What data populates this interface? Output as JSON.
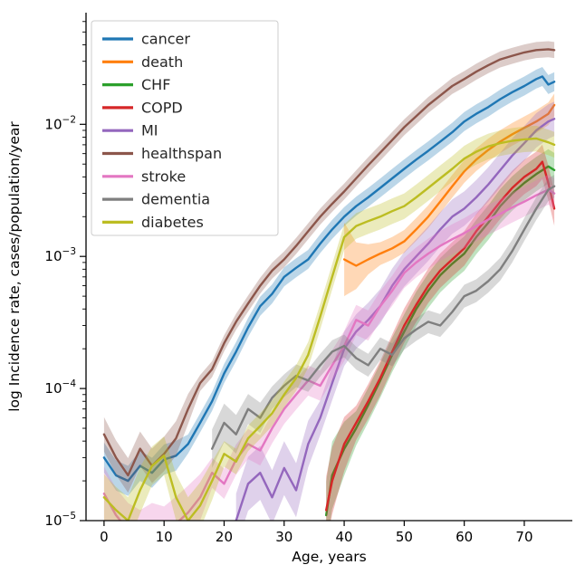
{
  "chart_data": {
    "type": "line",
    "title": "",
    "xlabel": "Age, years",
    "ylabel": "log Incidence rate, cases/population/year",
    "x_ticks": [
      0,
      10,
      20,
      30,
      40,
      50,
      60,
      70
    ],
    "xlim": [
      -3,
      78
    ],
    "ylog_lim": [
      1e-05,
      0.07
    ],
    "y_tick_exponents": [
      -2,
      -3,
      -4,
      -5
    ],
    "y_scale": "log",
    "grid": false,
    "legend_position": "upper left",
    "background": "#ffffff",
    "spine_color": "#000000",
    "series": [
      {
        "name": "cancer",
        "color": "#1f77b4",
        "band_factor": 1.18,
        "points": [
          [
            0,
            3e-05,
            1.3
          ],
          [
            2,
            2.2e-05,
            1.3
          ],
          [
            4,
            2e-05,
            1.3
          ],
          [
            6,
            2.6e-05,
            1.3
          ],
          [
            8,
            2.3e-05,
            1.3
          ],
          [
            10,
            2.9e-05,
            1.3
          ],
          [
            12,
            3.1e-05,
            1.3
          ],
          [
            14,
            3.8e-05
          ],
          [
            16,
            5.5e-05
          ],
          [
            18,
            8e-05
          ],
          [
            20,
            0.00013
          ],
          [
            22,
            0.00019
          ],
          [
            24,
            0.00029
          ],
          [
            26,
            0.00042
          ],
          [
            28,
            0.00052
          ],
          [
            30,
            0.0007
          ],
          [
            32,
            0.00082
          ],
          [
            34,
            0.00095
          ],
          [
            36,
            0.00125
          ],
          [
            38,
            0.0016
          ],
          [
            40,
            0.002
          ],
          [
            42,
            0.0024
          ],
          [
            44,
            0.0028
          ],
          [
            46,
            0.0033
          ],
          [
            48,
            0.0039
          ],
          [
            50,
            0.0046
          ],
          [
            52,
            0.0054
          ],
          [
            54,
            0.0063
          ],
          [
            56,
            0.0074
          ],
          [
            58,
            0.0087
          ],
          [
            60,
            0.0105
          ],
          [
            62,
            0.012
          ],
          [
            64,
            0.0135
          ],
          [
            66,
            0.0155
          ],
          [
            68,
            0.0175
          ],
          [
            70,
            0.0195
          ],
          [
            72,
            0.022
          ],
          [
            73,
            0.023
          ],
          [
            74,
            0.02
          ],
          [
            75,
            0.021
          ]
        ]
      },
      {
        "name": "death",
        "color": "#ff7f0e",
        "band_factor": 1.22,
        "points": [
          [
            40,
            0.00095,
            1.9
          ],
          [
            42,
            0.00085,
            1.5
          ],
          [
            44,
            0.00095,
            1.3
          ],
          [
            46,
            0.00105
          ],
          [
            48,
            0.00115
          ],
          [
            50,
            0.0013
          ],
          [
            52,
            0.0016
          ],
          [
            54,
            0.002
          ],
          [
            56,
            0.0026
          ],
          [
            58,
            0.0034
          ],
          [
            60,
            0.0044
          ],
          [
            62,
            0.0054
          ],
          [
            64,
            0.0064
          ],
          [
            66,
            0.0074
          ],
          [
            68,
            0.0084
          ],
          [
            70,
            0.0094
          ],
          [
            72,
            0.0105
          ],
          [
            74,
            0.012
          ],
          [
            75,
            0.014
          ]
        ]
      },
      {
        "name": "CHF",
        "color": "#2ca02c",
        "band_factor": 1.35,
        "points": [
          [
            37,
            1.1e-05,
            1.8
          ],
          [
            38,
            2.2e-05,
            1.8
          ],
          [
            40,
            3.5e-05,
            1.6
          ],
          [
            42,
            5e-05
          ],
          [
            44,
            7.5e-05
          ],
          [
            46,
            0.000115
          ],
          [
            48,
            0.00018
          ],
          [
            50,
            0.00027
          ],
          [
            52,
            0.0004
          ],
          [
            54,
            0.00055
          ],
          [
            56,
            0.00072
          ],
          [
            58,
            0.00088
          ],
          [
            60,
            0.00105
          ],
          [
            62,
            0.0014
          ],
          [
            64,
            0.0018
          ],
          [
            66,
            0.0024
          ],
          [
            68,
            0.003
          ],
          [
            70,
            0.0036
          ],
          [
            72,
            0.0042
          ],
          [
            74,
            0.0048
          ],
          [
            75,
            0.0045
          ]
        ]
      },
      {
        "name": "COPD",
        "color": "#d62728",
        "band_factor": 1.35,
        "points": [
          [
            37,
            1.2e-05,
            1.8
          ],
          [
            38,
            2e-05,
            1.8
          ],
          [
            40,
            3.8e-05,
            1.6
          ],
          [
            42,
            5.5e-05
          ],
          [
            44,
            8e-05
          ],
          [
            46,
            0.00012
          ],
          [
            48,
            0.00019
          ],
          [
            50,
            0.0003
          ],
          [
            52,
            0.00043
          ],
          [
            54,
            0.0006
          ],
          [
            56,
            0.00078
          ],
          [
            58,
            0.00095
          ],
          [
            60,
            0.00115
          ],
          [
            62,
            0.00155
          ],
          [
            64,
            0.002
          ],
          [
            66,
            0.0026
          ],
          [
            68,
            0.0033
          ],
          [
            70,
            0.004
          ],
          [
            72,
            0.0046
          ],
          [
            73,
            0.0052
          ],
          [
            74,
            0.0036
          ],
          [
            75,
            0.0023
          ]
        ]
      },
      {
        "name": "MI",
        "color": "#9467bd",
        "band_factor": 1.35,
        "points": [
          [
            22,
            1e-05,
            1.6
          ],
          [
            24,
            1.9e-05,
            1.6
          ],
          [
            26,
            2.3e-05,
            1.6
          ],
          [
            28,
            1.5e-05,
            1.6
          ],
          [
            30,
            2.5e-05,
            1.6
          ],
          [
            32,
            1.7e-05,
            1.6
          ],
          [
            34,
            3.8e-05,
            1.5
          ],
          [
            36,
            6e-05
          ],
          [
            38,
            0.00011
          ],
          [
            40,
            0.0002
          ],
          [
            42,
            0.00027
          ],
          [
            44,
            0.00033
          ],
          [
            46,
            0.00042
          ],
          [
            48,
            0.0006
          ],
          [
            50,
            0.0008
          ],
          [
            52,
            0.001
          ],
          [
            54,
            0.00125
          ],
          [
            56,
            0.0016
          ],
          [
            58,
            0.002
          ],
          [
            60,
            0.0023
          ],
          [
            62,
            0.0028
          ],
          [
            64,
            0.0035
          ],
          [
            66,
            0.0045
          ],
          [
            68,
            0.0058
          ],
          [
            70,
            0.0072
          ],
          [
            72,
            0.009
          ],
          [
            74,
            0.0105
          ],
          [
            75,
            0.011
          ]
        ]
      },
      {
        "name": "healthspan",
        "color": "#8c564b",
        "band_factor": 1.15,
        "points": [
          [
            0,
            4.5e-05,
            1.35
          ],
          [
            2,
            3e-05,
            1.35
          ],
          [
            4,
            2.2e-05,
            1.35
          ],
          [
            6,
            3.5e-05,
            1.35
          ],
          [
            8,
            2.6e-05,
            1.35
          ],
          [
            10,
            3.2e-05,
            1.35
          ],
          [
            12,
            4.2e-05,
            1.35
          ],
          [
            14,
            7e-05,
            1.3
          ],
          [
            16,
            0.00011
          ],
          [
            18,
            0.00014
          ],
          [
            20,
            0.00022
          ],
          [
            22,
            0.00032
          ],
          [
            24,
            0.00044
          ],
          [
            26,
            0.0006
          ],
          [
            28,
            0.00078
          ],
          [
            30,
            0.00095
          ],
          [
            32,
            0.0012
          ],
          [
            34,
            0.00155
          ],
          [
            36,
            0.002
          ],
          [
            38,
            0.0025
          ],
          [
            40,
            0.0031
          ],
          [
            42,
            0.0039
          ],
          [
            44,
            0.0049
          ],
          [
            46,
            0.0061
          ],
          [
            48,
            0.0076
          ],
          [
            50,
            0.0095
          ],
          [
            52,
            0.0115
          ],
          [
            54,
            0.014
          ],
          [
            56,
            0.0165
          ],
          [
            58,
            0.0195
          ],
          [
            60,
            0.022
          ],
          [
            62,
            0.025
          ],
          [
            64,
            0.028
          ],
          [
            66,
            0.031
          ],
          [
            68,
            0.033
          ],
          [
            70,
            0.035
          ],
          [
            72,
            0.0365
          ],
          [
            74,
            0.037
          ],
          [
            75,
            0.0365
          ]
        ]
      },
      {
        "name": "stroke",
        "color": "#e377c2",
        "band_factor": 1.3,
        "points": [
          [
            0,
            1.6e-05,
            1.6
          ],
          [
            2,
            1.1e-05,
            1.6
          ],
          [
            4,
            8.5e-06,
            1.6
          ],
          [
            6,
            7.5e-06,
            1.6
          ],
          [
            8,
            8.5e-06,
            1.6
          ],
          [
            10,
            8e-06,
            1.6
          ],
          [
            12,
            9.5e-06,
            1.6
          ],
          [
            14,
            1.15e-05,
            1.6
          ],
          [
            16,
            1.5e-05,
            1.5
          ],
          [
            18,
            2.3e-05
          ],
          [
            20,
            1.9e-05
          ],
          [
            22,
            2.9e-05
          ],
          [
            24,
            3.8e-05
          ],
          [
            26,
            3.4e-05
          ],
          [
            28,
            5e-05
          ],
          [
            30,
            7e-05
          ],
          [
            32,
            9e-05
          ],
          [
            34,
            0.000115
          ],
          [
            36,
            0.000105
          ],
          [
            38,
            0.00015
          ],
          [
            40,
            0.00021
          ],
          [
            42,
            0.00033
          ],
          [
            44,
            0.0003
          ],
          [
            46,
            0.00042
          ],
          [
            48,
            0.00055
          ],
          [
            50,
            0.00075
          ],
          [
            52,
            0.0009
          ],
          [
            54,
            0.00105
          ],
          [
            56,
            0.0012
          ],
          [
            58,
            0.00135
          ],
          [
            60,
            0.0015
          ],
          [
            62,
            0.0017
          ],
          [
            64,
            0.0019
          ],
          [
            66,
            0.0021
          ],
          [
            68,
            0.00235
          ],
          [
            70,
            0.0026
          ],
          [
            72,
            0.0029
          ],
          [
            74,
            0.0032
          ],
          [
            75,
            0.003
          ]
        ]
      },
      {
        "name": "dementia",
        "color": "#7f7f7f",
        "band_factor": 1.22,
        "points": [
          [
            18,
            3.5e-05,
            1.4
          ],
          [
            20,
            5.5e-05,
            1.4
          ],
          [
            22,
            4.5e-05,
            1.4
          ],
          [
            24,
            7e-05,
            1.3
          ],
          [
            26,
            6e-05,
            1.3
          ],
          [
            28,
            8.5e-05
          ],
          [
            30,
            0.000105
          ],
          [
            32,
            0.000125
          ],
          [
            34,
            0.000115
          ],
          [
            36,
            0.00015
          ],
          [
            38,
            0.00019
          ],
          [
            40,
            0.00021
          ],
          [
            42,
            0.00017
          ],
          [
            44,
            0.00015
          ],
          [
            46,
            0.0002
          ],
          [
            48,
            0.00018
          ],
          [
            50,
            0.00024
          ],
          [
            52,
            0.00028
          ],
          [
            54,
            0.00032
          ],
          [
            56,
            0.0003
          ],
          [
            58,
            0.00038
          ],
          [
            60,
            0.0005
          ],
          [
            62,
            0.00055
          ],
          [
            64,
            0.00065
          ],
          [
            66,
            0.0008
          ],
          [
            68,
            0.0011
          ],
          [
            70,
            0.0016
          ],
          [
            72,
            0.0023
          ],
          [
            74,
            0.0032
          ],
          [
            75,
            0.0034
          ]
        ]
      },
      {
        "name": "diabetes",
        "color": "#bcbd22",
        "band_factor": 1.25,
        "points": [
          [
            0,
            1.5e-05,
            1.5
          ],
          [
            2,
            1.2e-05,
            1.5
          ],
          [
            4,
            1e-05,
            1.5
          ],
          [
            6,
            1.7e-05,
            1.5
          ],
          [
            8,
            2.6e-05,
            1.4
          ],
          [
            10,
            3.1e-05,
            1.4
          ],
          [
            12,
            1.5e-05,
            1.5
          ],
          [
            14,
            1e-05,
            1.5
          ],
          [
            16,
            1.3e-05,
            1.5
          ],
          [
            18,
            2e-05,
            1.4
          ],
          [
            20,
            3.2e-05
          ],
          [
            22,
            2.8e-05
          ],
          [
            24,
            4.2e-05
          ],
          [
            26,
            5.2e-05
          ],
          [
            28,
            6.5e-05
          ],
          [
            30,
            9e-05
          ],
          [
            32,
            0.00012
          ],
          [
            34,
            0.00018
          ],
          [
            36,
            0.00035
          ],
          [
            38,
            0.0007
          ],
          [
            40,
            0.0014
          ],
          [
            42,
            0.0017
          ],
          [
            44,
            0.00185
          ],
          [
            46,
            0.002
          ],
          [
            48,
            0.0022
          ],
          [
            50,
            0.0024
          ],
          [
            52,
            0.0028
          ],
          [
            54,
            0.0033
          ],
          [
            56,
            0.0039
          ],
          [
            58,
            0.0046
          ],
          [
            60,
            0.0055
          ],
          [
            62,
            0.0062
          ],
          [
            64,
            0.0068
          ],
          [
            66,
            0.0072
          ],
          [
            68,
            0.0075
          ],
          [
            70,
            0.0077
          ],
          [
            72,
            0.0078
          ],
          [
            74,
            0.0073
          ],
          [
            75,
            0.007
          ]
        ]
      }
    ]
  }
}
